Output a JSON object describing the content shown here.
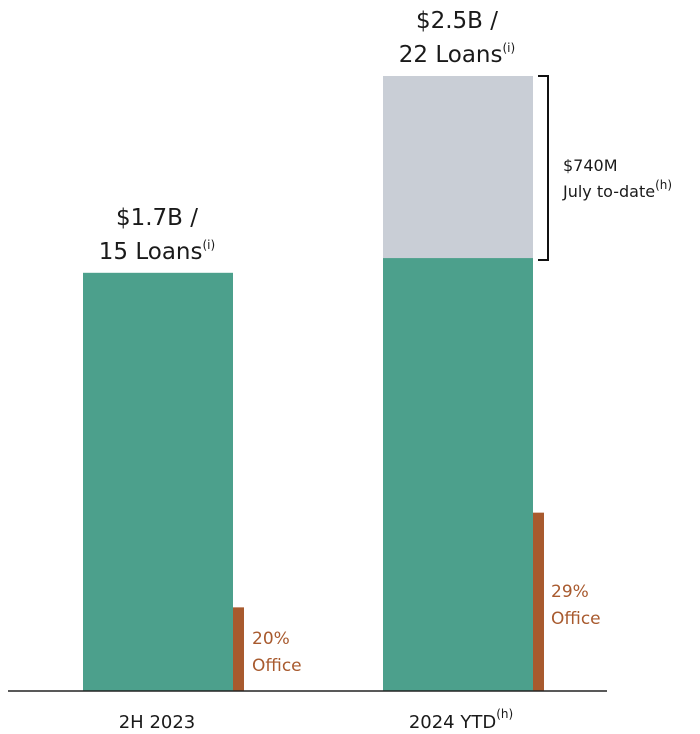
{
  "chart_data": {
    "type": "bar",
    "stacked": true,
    "categories": [
      "2H 2023",
      "2024 YTD"
    ],
    "category_superscripts": [
      "",
      "(h)"
    ],
    "series": [
      {
        "name": "",
        "color": "#4ca08c",
        "values": [
          1.7,
          1.76
        ]
      },
      {
        "name": "",
        "color": "#c9ced6",
        "values": [
          0,
          0.74
        ]
      }
    ],
    "office_share": {
      "color": "#a85a2e",
      "values": [
        0.2,
        0.29
      ],
      "labels": [
        [
          "20%",
          "Office"
        ],
        [
          "29%",
          "Office"
        ]
      ]
    },
    "totals": [
      {
        "line1": "$1.7B /",
        "line2": "15 Loans",
        "sup": "(i)"
      },
      {
        "line1": "$2.5B /",
        "line2": "22 Loans",
        "sup": "(i)"
      }
    ],
    "bracket": {
      "line1": "$740M",
      "line2": "July to-date",
      "sup": "(h)"
    },
    "ylim": [
      0,
      2.5
    ]
  }
}
